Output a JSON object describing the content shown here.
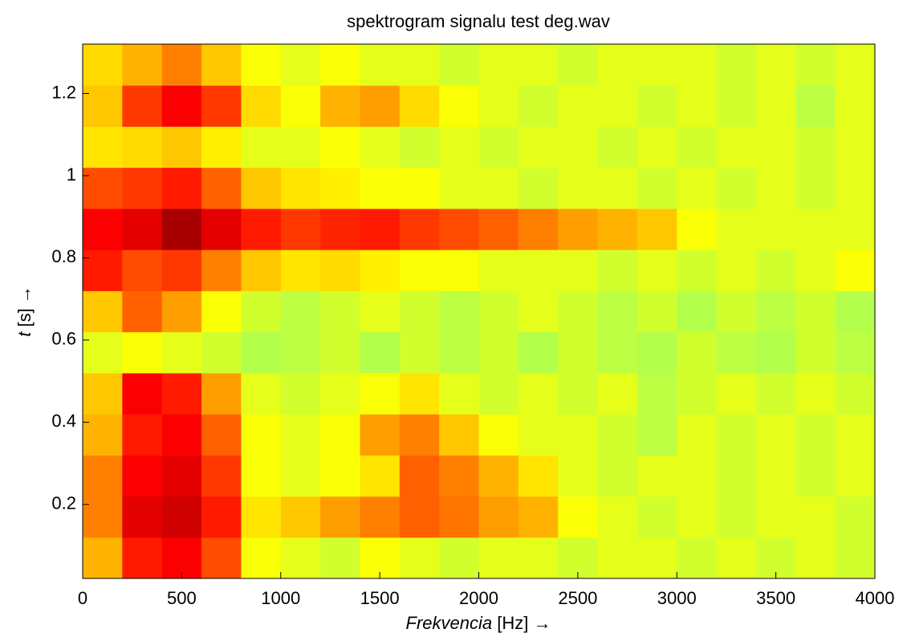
{
  "chart_data": {
    "type": "heatmap",
    "title": "spektrogram signalu test deg.wav",
    "xlabel": [
      "Frekvencia",
      "[Hz] →"
    ],
    "ylabel": [
      "t",
      "[s] →"
    ],
    "colormap": "jet",
    "xbins": [
      0,
      200,
      400,
      600,
      800,
      1000,
      1200,
      1400,
      1600,
      1800,
      2000,
      2200,
      2400,
      2600,
      2800,
      3000,
      3200,
      3400,
      3600,
      3800,
      4000
    ],
    "ybins": [
      0.02,
      0.12,
      0.22,
      0.32,
      0.42,
      0.52,
      0.62,
      0.72,
      0.82,
      0.92,
      1.02,
      1.12,
      1.22,
      1.32
    ],
    "z": [
      [
        0.7,
        0.85,
        0.88,
        0.8,
        0.62,
        0.6,
        0.58,
        0.62,
        0.6,
        0.58,
        0.6,
        0.6,
        0.58,
        0.6,
        0.6,
        0.58,
        0.6,
        0.58,
        0.6,
        0.58
      ],
      [
        0.75,
        0.9,
        0.92,
        0.85,
        0.65,
        0.68,
        0.72,
        0.75,
        0.78,
        0.76,
        0.72,
        0.7,
        0.62,
        0.6,
        0.58,
        0.6,
        0.58,
        0.6,
        0.6,
        0.58
      ],
      [
        0.75,
        0.88,
        0.9,
        0.82,
        0.62,
        0.6,
        0.62,
        0.65,
        0.78,
        0.75,
        0.7,
        0.65,
        0.6,
        0.58,
        0.6,
        0.6,
        0.58,
        0.6,
        0.58,
        0.6
      ],
      [
        0.7,
        0.85,
        0.88,
        0.78,
        0.62,
        0.6,
        0.62,
        0.72,
        0.75,
        0.68,
        0.62,
        0.6,
        0.6,
        0.58,
        0.56,
        0.6,
        0.58,
        0.6,
        0.58,
        0.6
      ],
      [
        0.68,
        0.88,
        0.85,
        0.72,
        0.6,
        0.58,
        0.6,
        0.62,
        0.65,
        0.6,
        0.58,
        0.6,
        0.58,
        0.6,
        0.56,
        0.58,
        0.6,
        0.58,
        0.6,
        0.58
      ],
      [
        0.6,
        0.62,
        0.6,
        0.58,
        0.55,
        0.56,
        0.58,
        0.55,
        0.58,
        0.56,
        0.58,
        0.55,
        0.58,
        0.56,
        0.55,
        0.58,
        0.56,
        0.55,
        0.58,
        0.56
      ],
      [
        0.68,
        0.78,
        0.72,
        0.62,
        0.58,
        0.56,
        0.58,
        0.6,
        0.58,
        0.56,
        0.58,
        0.6,
        0.58,
        0.56,
        0.58,
        0.55,
        0.58,
        0.56,
        0.58,
        0.55
      ],
      [
        0.85,
        0.8,
        0.82,
        0.75,
        0.68,
        0.65,
        0.66,
        0.64,
        0.62,
        0.62,
        0.6,
        0.6,
        0.6,
        0.58,
        0.6,
        0.58,
        0.6,
        0.58,
        0.6,
        0.62
      ],
      [
        0.88,
        0.9,
        0.96,
        0.9,
        0.85,
        0.82,
        0.84,
        0.85,
        0.82,
        0.8,
        0.78,
        0.75,
        0.72,
        0.7,
        0.68,
        0.62,
        0.6,
        0.6,
        0.6,
        0.6
      ],
      [
        0.8,
        0.82,
        0.85,
        0.78,
        0.68,
        0.65,
        0.64,
        0.62,
        0.62,
        0.6,
        0.6,
        0.58,
        0.6,
        0.6,
        0.58,
        0.6,
        0.58,
        0.6,
        0.58,
        0.6
      ],
      [
        0.65,
        0.66,
        0.68,
        0.64,
        0.6,
        0.6,
        0.62,
        0.6,
        0.58,
        0.6,
        0.58,
        0.6,
        0.6,
        0.58,
        0.6,
        0.58,
        0.6,
        0.6,
        0.58,
        0.6
      ],
      [
        0.68,
        0.82,
        0.88,
        0.82,
        0.66,
        0.62,
        0.7,
        0.72,
        0.66,
        0.62,
        0.6,
        0.58,
        0.6,
        0.6,
        0.58,
        0.6,
        0.58,
        0.6,
        0.56,
        0.6
      ],
      [
        0.66,
        0.7,
        0.75,
        0.68,
        0.62,
        0.6,
        0.62,
        0.6,
        0.6,
        0.58,
        0.6,
        0.6,
        0.58,
        0.6,
        0.6,
        0.6,
        0.58,
        0.6,
        0.58,
        0.6
      ]
    ],
    "xlim": [
      0,
      4000
    ],
    "ylim": [
      0.02,
      1.32
    ],
    "xticks": [
      0,
      500,
      1000,
      1500,
      2000,
      2500,
      3000,
      3500,
      4000
    ],
    "yticks": [
      0.2,
      0.4,
      0.6,
      0.8,
      1,
      1.2
    ]
  }
}
